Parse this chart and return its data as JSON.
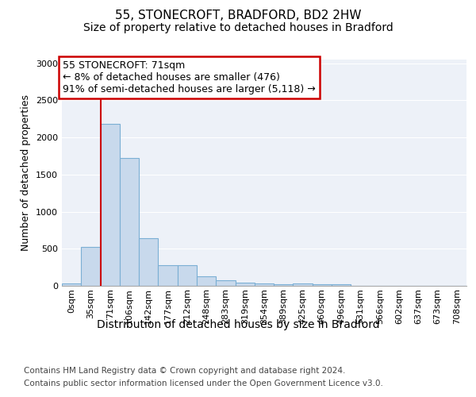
{
  "title_line1": "55, STONECROFT, BRADFORD, BD2 2HW",
  "title_line2": "Size of property relative to detached houses in Bradford",
  "xlabel": "Distribution of detached houses by size in Bradford",
  "ylabel": "Number of detached properties",
  "footnote1": "Contains HM Land Registry data © Crown copyright and database right 2024.",
  "footnote2": "Contains public sector information licensed under the Open Government Licence v3.0.",
  "bin_labels": [
    "0sqm",
    "35sqm",
    "71sqm",
    "106sqm",
    "142sqm",
    "177sqm",
    "212sqm",
    "248sqm",
    "283sqm",
    "319sqm",
    "354sqm",
    "389sqm",
    "425sqm",
    "460sqm",
    "496sqm",
    "531sqm",
    "566sqm",
    "602sqm",
    "637sqm",
    "673sqm",
    "708sqm"
  ],
  "bar_heights": [
    30,
    520,
    2180,
    1720,
    640,
    280,
    280,
    130,
    80,
    45,
    30,
    25,
    35,
    25,
    25,
    0,
    0,
    0,
    0,
    0,
    0
  ],
  "bar_color": "#c8d9ec",
  "bar_edge_color": "#7bafd4",
  "red_line_x": 1.5,
  "red_line_color": "#cc0000",
  "annotation_text": "55 STONECROFT: 71sqm\n← 8% of detached houses are smaller (476)\n91% of semi-detached houses are larger (5,118) →",
  "annotation_box_facecolor": "#ffffff",
  "annotation_box_edgecolor": "#cc0000",
  "ylim": [
    0,
    3050
  ],
  "yticks": [
    0,
    500,
    1000,
    1500,
    2000,
    2500,
    3000
  ],
  "plot_bg_color": "#edf1f8",
  "grid_color": "#ffffff",
  "fig_bg_color": "#ffffff",
  "title_fontsize": 11,
  "subtitle_fontsize": 10,
  "ylabel_fontsize": 9,
  "xlabel_fontsize": 10,
  "tick_fontsize": 8,
  "footnote_fontsize": 7.5,
  "annotation_fontsize": 9
}
